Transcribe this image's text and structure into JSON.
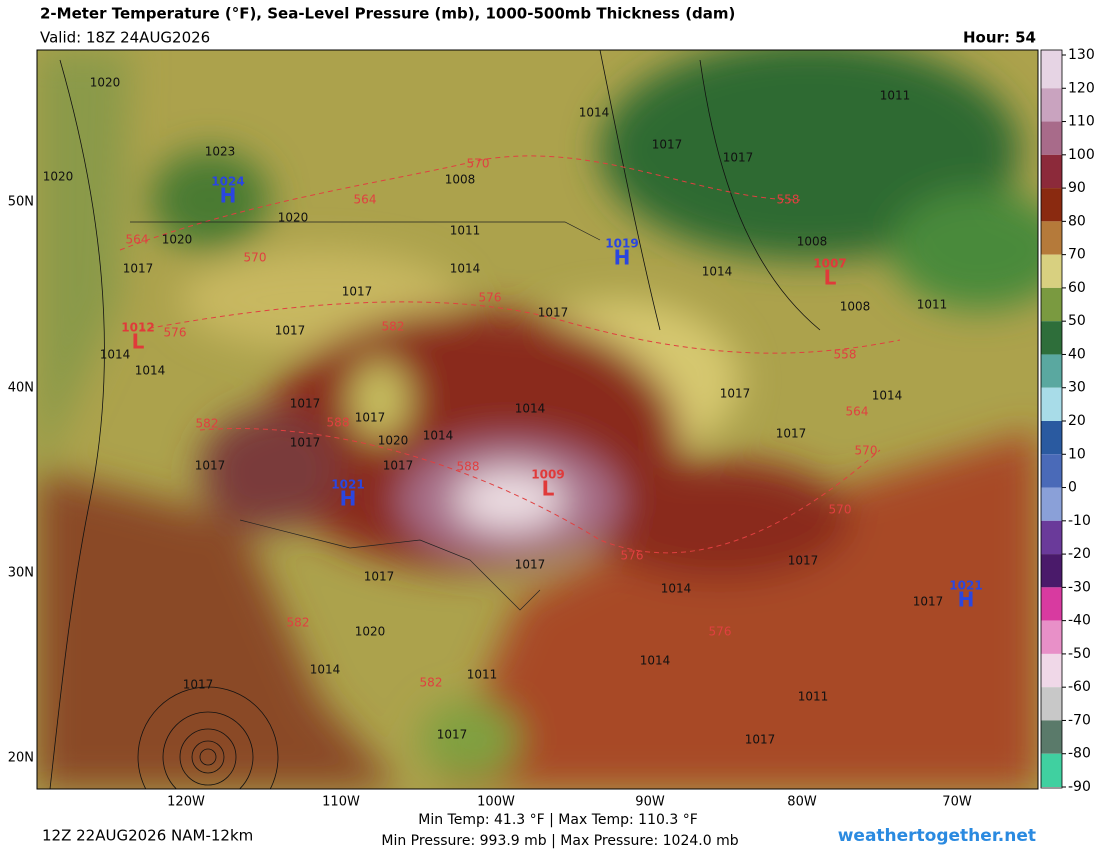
{
  "header": {
    "title": "2-Meter Temperature (°F), Sea-Level Pressure (mb), 1000-500mb Thickness (dam)",
    "valid": "Valid: 18Z 24AUG2026",
    "hour": "Hour: 54"
  },
  "map": {
    "latitude_labels": [
      "50N",
      "40N",
      "30N",
      "20N"
    ],
    "longitude_labels": [
      "120W",
      "110W",
      "100W",
      "90W",
      "80W",
      "70W"
    ],
    "isobar_labels": [
      "1020",
      "1023",
      "1020",
      "1020",
      "1020",
      "1017",
      "1014",
      "1014",
      "1017",
      "1017",
      "1008",
      "1011",
      "1014",
      "1014",
      "1017",
      "1017",
      "1011",
      "1014",
      "1008",
      "1008",
      "1011",
      "1017",
      "1017",
      "1017",
      "1017",
      "1020",
      "1014",
      "1014",
      "1017",
      "1017",
      "1014",
      "1017",
      "1017",
      "1017",
      "1017",
      "1014",
      "1017",
      "1017",
      "1020",
      "1014",
      "1014",
      "1017",
      "1011",
      "1011",
      "1017",
      "1017"
    ],
    "pressure_centers": [
      {
        "value": "1024",
        "letter": "H"
      },
      {
        "value": "1012",
        "letter": "L"
      },
      {
        "value": "1019",
        "letter": "H"
      },
      {
        "value": "1007",
        "letter": "L"
      },
      {
        "value": "1021",
        "letter": "H"
      },
      {
        "value": "1009",
        "letter": "L"
      },
      {
        "value": "1021",
        "letter": "H"
      }
    ],
    "high_color": "#2a46e0",
    "low_color": "#e03a3a",
    "thickness_labels": [
      "570",
      "564",
      "558",
      "570",
      "576",
      "576",
      "582",
      "582",
      "588",
      "588",
      "576",
      "570",
      "564",
      "570",
      "558",
      "576",
      "582",
      "582",
      "564"
    ]
  },
  "colorbar": {
    "ticks": [
      130,
      120,
      110,
      100,
      90,
      80,
      70,
      60,
      50,
      40,
      30,
      20,
      10,
      0,
      -10,
      -20,
      -30,
      -40,
      -50,
      -60,
      -70,
      -80,
      -90
    ],
    "colors": [
      "#e6d4e4",
      "#c9a3bf",
      "#a86b8a",
      "#8c2a3a",
      "#8a2a10",
      "#b57a3a",
      "#d8d080",
      "#7a9a40",
      "#2e6e3a",
      "#5aa8a0",
      "#a8dce8",
      "#2a5aa0",
      "#4a6ab8",
      "#8aa0d8",
      "#6a3a9a",
      "#4a1a6a",
      "#d83aa0",
      "#e890c8",
      "#f0d8e8",
      "#c8c8c8",
      "#5a7a6a",
      "#40d0a0"
    ]
  },
  "footer": {
    "run": "12Z 22AUG2026 NAM-12km",
    "temps": "Min Temp:  41.3 °F | Max Temp: 110.3 °F",
    "pressures": "Min Pressure: 993.9 mb | Max Pressure: 1024.0 mb",
    "site": "weathertogether.net"
  }
}
